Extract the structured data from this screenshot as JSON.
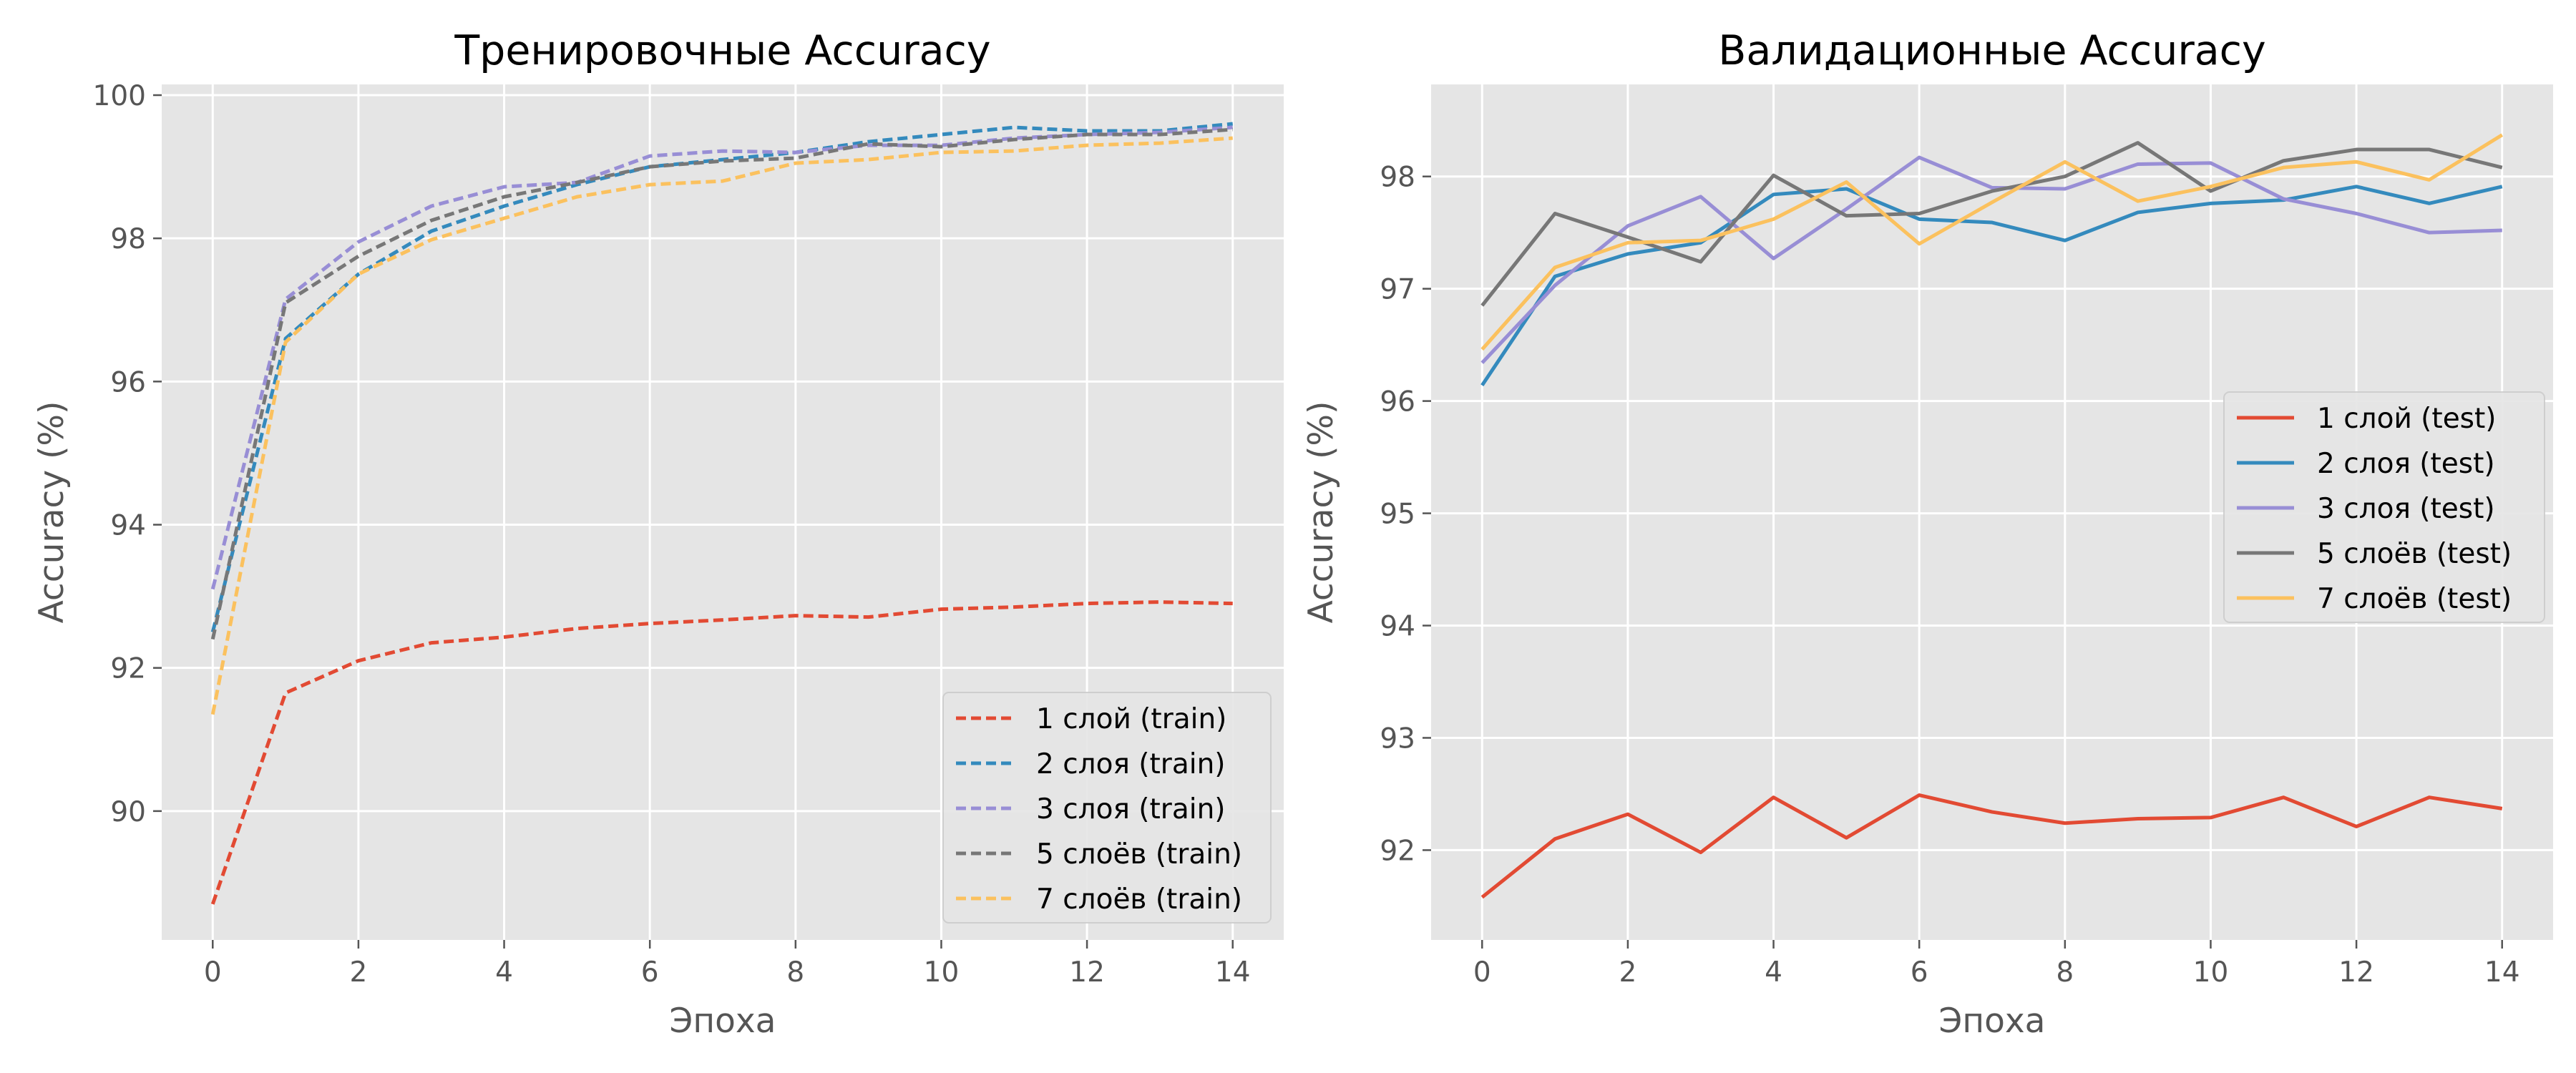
{
  "chart_data": [
    {
      "type": "line",
      "title": "Тренировочные Accuracy",
      "xlabel": "Эпоха",
      "ylabel": "Accuracy (%)",
      "xlim": [
        -0.7,
        14.7
      ],
      "ylim": [
        88.2,
        100.15
      ],
      "xticks": [
        0,
        2,
        4,
        6,
        8,
        10,
        12,
        14
      ],
      "yticks": [
        90,
        92,
        94,
        96,
        98,
        100
      ],
      "line_style": "dashed",
      "grid": true,
      "legend_position": "lower-right",
      "x": [
        0,
        1,
        2,
        3,
        4,
        5,
        6,
        7,
        8,
        9,
        10,
        11,
        12,
        13,
        14
      ],
      "series": [
        {
          "name": "1 слой (train)",
          "color": "#E24A33",
          "values": [
            88.7,
            91.65,
            92.1,
            92.35,
            92.43,
            92.55,
            92.62,
            92.67,
            92.73,
            92.71,
            92.82,
            92.85,
            92.9,
            92.92,
            92.9
          ]
        },
        {
          "name": "2 слоя (train)",
          "color": "#348ABD",
          "values": [
            92.5,
            96.6,
            97.5,
            98.1,
            98.45,
            98.75,
            99.0,
            99.1,
            99.2,
            99.35,
            99.45,
            99.55,
            99.5,
            99.5,
            99.6
          ]
        },
        {
          "name": "3 слоя (train)",
          "color": "#988ED5",
          "values": [
            93.1,
            97.15,
            97.95,
            98.45,
            98.72,
            98.78,
            99.15,
            99.22,
            99.2,
            99.3,
            99.3,
            99.4,
            99.45,
            99.48,
            99.55
          ]
        },
        {
          "name": "5 слоёв (train)",
          "color": "#777777",
          "values": [
            92.4,
            97.1,
            97.75,
            98.25,
            98.58,
            98.78,
            99.0,
            99.08,
            99.12,
            99.32,
            99.28,
            99.38,
            99.45,
            99.45,
            99.52
          ]
        },
        {
          "name": "7 слоёв (train)",
          "color": "#FBC15E",
          "values": [
            91.35,
            96.55,
            97.5,
            97.98,
            98.28,
            98.58,
            98.75,
            98.8,
            99.05,
            99.1,
            99.2,
            99.22,
            99.3,
            99.33,
            99.4
          ]
        }
      ]
    },
    {
      "type": "line",
      "title": "Валидационные Accuracy",
      "xlabel": "Эпоха",
      "ylabel": "Accuracy (%)",
      "xlim": [
        -0.7,
        14.7
      ],
      "ylim": [
        91.2,
        98.82
      ],
      "xticks": [
        0,
        2,
        4,
        6,
        8,
        10,
        12,
        14
      ],
      "yticks": [
        92,
        93,
        94,
        95,
        96,
        97,
        98
      ],
      "line_style": "solid",
      "grid": true,
      "legend_position": "center-right",
      "x": [
        0,
        1,
        2,
        3,
        4,
        5,
        6,
        7,
        8,
        9,
        10,
        11,
        12,
        13,
        14
      ],
      "series": [
        {
          "name": "1 слой (test)",
          "color": "#E24A33",
          "values": [
            91.58,
            92.1,
            92.32,
            91.98,
            92.47,
            92.11,
            92.49,
            92.34,
            92.24,
            92.28,
            92.29,
            92.47,
            92.21,
            92.47,
            92.37
          ]
        },
        {
          "name": "2 слоя (test)",
          "color": "#348ABD",
          "values": [
            96.14,
            97.11,
            97.31,
            97.41,
            97.84,
            97.89,
            97.62,
            97.59,
            97.43,
            97.68,
            97.76,
            97.79,
            97.91,
            97.76,
            97.91
          ]
        },
        {
          "name": "3 слоя (test)",
          "color": "#988ED5",
          "values": [
            96.34,
            97.03,
            97.56,
            97.82,
            97.27,
            97.71,
            98.17,
            97.9,
            97.89,
            98.11,
            98.12,
            97.8,
            97.67,
            97.5,
            97.52
          ]
        },
        {
          "name": "5 слоёв (test)",
          "color": "#777777",
          "values": [
            96.85,
            97.67,
            97.46,
            97.24,
            98.01,
            97.65,
            97.67,
            97.87,
            98.0,
            98.3,
            97.87,
            98.14,
            98.24,
            98.24,
            98.08
          ]
        },
        {
          "name": "7 слоёв (test)",
          "color": "#FBC15E",
          "values": [
            96.46,
            97.19,
            97.41,
            97.43,
            97.62,
            97.95,
            97.4,
            97.77,
            98.13,
            97.78,
            97.91,
            98.08,
            98.13,
            97.97,
            98.37
          ]
        }
      ]
    }
  ]
}
